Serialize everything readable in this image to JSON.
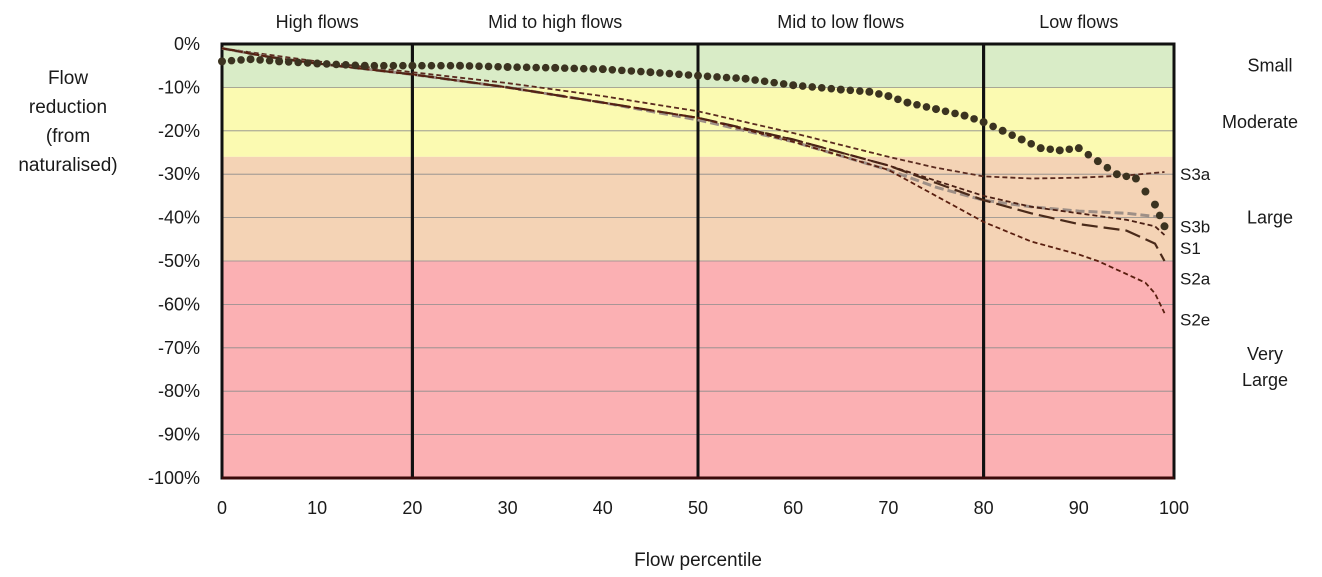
{
  "chart_data": {
    "type": "line",
    "xlabel": "Flow percentile",
    "ylabel_lines": [
      "Flow",
      "reduction",
      "(from",
      "naturalised)"
    ],
    "xlim": [
      0,
      100
    ],
    "ylim": [
      -100,
      0
    ],
    "x_ticks": [
      0,
      10,
      20,
      30,
      40,
      50,
      60,
      70,
      80,
      90,
      100
    ],
    "y_ticks": [
      0,
      -10,
      -20,
      -30,
      -40,
      -50,
      -60,
      -70,
      -80,
      -90,
      -100
    ],
    "y_tick_labels": [
      "0%",
      "-10%",
      "-20%",
      "-30%",
      "-40%",
      "-50%",
      "-60%",
      "-70%",
      "-80%",
      "-90%",
      "-100%"
    ],
    "grid": "horizontal",
    "periods": [
      {
        "label": "High flows",
        "from": 0,
        "to": 20
      },
      {
        "label": "Mid to high flows",
        "from": 20,
        "to": 50
      },
      {
        "label": "Mid to low flows",
        "from": 50,
        "to": 80
      },
      {
        "label": "Low flows",
        "from": 80,
        "to": 100
      }
    ],
    "bands": [
      {
        "label": "Small",
        "from": 0,
        "to": -10,
        "color": "#d9ecc7"
      },
      {
        "label": "Moderate",
        "from": -10,
        "to": -26,
        "color": "#fbfab1"
      },
      {
        "label": "Large",
        "from": -26,
        "to": -50,
        "color": "#f4d3b5"
      },
      {
        "label": "Very Large",
        "from": -50,
        "to": -100,
        "color": "#fbb0b3"
      }
    ],
    "series": [
      {
        "name": "S3a",
        "style": "short-dash",
        "color": "#5a2a1f",
        "x": [
          0,
          5,
          10,
          20,
          30,
          40,
          50,
          60,
          70,
          75,
          80,
          85,
          90,
          95,
          99
        ],
        "y": [
          -1,
          -2.5,
          -4,
          -6.5,
          -9,
          -12,
          -15.5,
          -20.5,
          -26,
          -28.5,
          -30.5,
          -31,
          -30.8,
          -30.3,
          -29.5
        ]
      },
      {
        "name": "S3b",
        "style": "gray-dash",
        "color": "#9e8f86",
        "x": [
          0,
          5,
          10,
          20,
          30,
          40,
          50,
          60,
          70,
          75,
          80,
          85,
          90,
          95,
          99
        ],
        "y": [
          -1,
          -3,
          -4.5,
          -7,
          -10,
          -13.5,
          -17.5,
          -22.5,
          -29,
          -33,
          -36,
          -37.5,
          -38.5,
          -39,
          -40
        ]
      },
      {
        "name": "S1",
        "style": "long-dash",
        "color": "#4a2a1a",
        "x": [
          0,
          5,
          10,
          20,
          30,
          40,
          50,
          60,
          70,
          75,
          80,
          85,
          90,
          95,
          98,
          99
        ],
        "y": [
          -1,
          -3,
          -4.5,
          -7,
          -10,
          -13.5,
          -17,
          -22,
          -28,
          -32,
          -36,
          -39,
          -41.5,
          -43,
          -46,
          -50
        ]
      },
      {
        "name": "S2a",
        "style": "short-dash",
        "color": "#4a1f14",
        "x": [
          0,
          5,
          10,
          20,
          30,
          40,
          50,
          60,
          70,
          75,
          80,
          85,
          90,
          95,
          98,
          99
        ],
        "y": [
          -1,
          -3,
          -4.5,
          -7,
          -10,
          -13.5,
          -17,
          -22,
          -28,
          -31.5,
          -35,
          -37.5,
          -39,
          -40.5,
          -42,
          -44
        ]
      },
      {
        "name": "S2e",
        "style": "short-dash",
        "color": "#5a1f10",
        "x": [
          0,
          5,
          10,
          20,
          30,
          40,
          50,
          60,
          70,
          75,
          80,
          85,
          90,
          92,
          95,
          97,
          98,
          99
        ],
        "y": [
          -1,
          -3,
          -4.5,
          -7,
          -10,
          -13.5,
          -17,
          -22.5,
          -29,
          -35,
          -41,
          -45.5,
          -48.5,
          -50,
          -53,
          -55,
          -57.5,
          -62
        ]
      },
      {
        "style": "dots",
        "color": "#3b3320",
        "x": [
          0,
          3,
          6,
          10,
          15,
          20,
          25,
          30,
          35,
          40,
          45,
          50,
          55,
          60,
          65,
          68,
          70,
          72,
          75,
          78,
          80,
          82,
          84,
          86,
          88,
          90,
          92,
          94,
          96,
          97,
          98,
          99
        ],
        "y": [
          -4,
          -3.5,
          -4,
          -4.5,
          -5,
          -5,
          -5,
          -5.3,
          -5.5,
          -5.8,
          -6.5,
          -7.3,
          -8,
          -9.5,
          -10.5,
          -11,
          -12,
          -13.5,
          -15,
          -16.5,
          -18,
          -20,
          -22,
          -24,
          -24.5,
          -24,
          -27,
          -30,
          -31,
          -34,
          -37,
          -42
        ]
      }
    ],
    "series_labels": [
      {
        "text": "S3a",
        "y": -30
      },
      {
        "text": "S3b",
        "y": -42
      },
      {
        "text": "S1",
        "y": -47
      },
      {
        "text": "S2a",
        "y": -54
      },
      {
        "text": "S2e",
        "y": -63.5
      }
    ]
  }
}
